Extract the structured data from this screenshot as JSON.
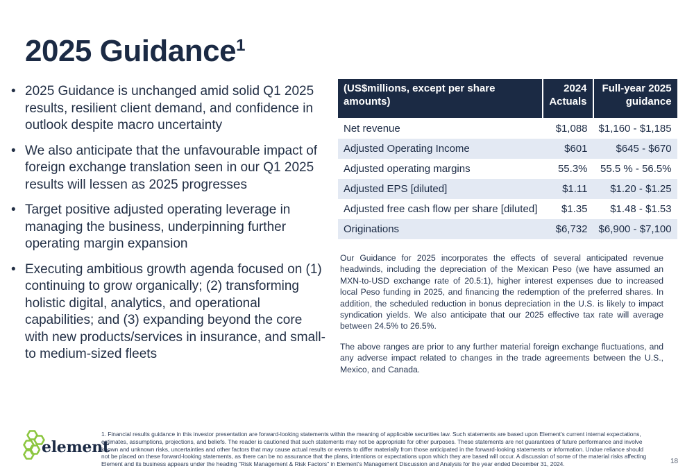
{
  "title": {
    "text": "2025 Guidance",
    "superscript": "1"
  },
  "bullets": [
    "2025 Guidance is unchanged amid solid Q1 2025 results, resilient client demand, and confidence in outlook despite macro uncertainty",
    "We also anticipate that the unfavourable impact of foreign exchange translation seen in our Q1 2025 results will lessen as 2025 progresses",
    "Target positive adjusted operating leverage in managing the business, underpinning further operating margin expansion",
    "Executing ambitious growth agenda focused on (1) continuing to grow organically; (2) transforming holistic digital, analytics, and operational capabilities; and (3) expanding beyond the core with new products/services in insurance, and small-to medium-sized fleets"
  ],
  "bullet_symbol": "•",
  "table": {
    "headers": {
      "metric": "(US$millions, except per share amounts)",
      "actuals_line1": "2024",
      "actuals_line2": "Actuals",
      "guidance_line1": "Full-year 2025",
      "guidance_line2": "guidance"
    },
    "rows": [
      {
        "metric": "Net revenue",
        "actuals": "$1,088",
        "guidance": "$1,160 - $1,185"
      },
      {
        "metric": "Adjusted Operating Income",
        "actuals": "$601",
        "guidance": "$645 - $670"
      },
      {
        "metric": "Adjusted operating margins",
        "actuals": "55.3%",
        "guidance": "55.5 % - 56.5%"
      },
      {
        "metric": "Adjusted EPS [diluted]",
        "actuals": "$1.11",
        "guidance": "$1.20 - $1.25"
      },
      {
        "metric": "Adjusted free cash flow per share [diluted]",
        "actuals": "$1.35",
        "guidance": "$1.48 - $1.53"
      },
      {
        "metric": "Originations",
        "actuals": "$6,732",
        "guidance": "$6,900 - $7,100"
      }
    ]
  },
  "notes": [
    "Our Guidance for 2025 incorporates the effects of several anticipated revenue headwinds, including the depreciation of the Mexican Peso (we have assumed an MXN-to-USD exchange rate of 20.5:1), higher interest expenses due to increased local Peso funding in 2025, and financing the redemption of the preferred shares. In addition, the scheduled reduction in bonus depreciation in the U.S. is likely to impact syndication yields. We also anticipate that our 2025 effective tax rate will average between 24.5% to 26.5%.",
    "The above ranges are prior to any further material foreign exchange fluctuations, and any adverse impact related to changes in the trade agreements between the U.S., Mexico, and Canada."
  ],
  "logo": {
    "text": "element",
    "icon": "hexagon-cluster-icon",
    "color": "#8cc63f"
  },
  "footnote": "1. Financial results guidance in this investor presentation are forward-looking statements within the meaning of applicable securities law. Such statements are based upon Element's current internal expectations, estimates, assumptions, projections, and beliefs. The reader is cautioned that such statements may not be appropriate for other purposes. These statements are not guarantees of future performance and involve known and unknown risks, uncertainties and other factors that may cause actual results or events to differ materially from those anticipated in the forward-looking statements or information. Undue reliance should not be placed on these forward-looking statements, as there can be no assurance that the plans, intentions or expectations upon which they are based will occur.  A discussion of some of the material risks affecting Element and its business appears under the heading \"Risk Management & Risk Factors\" in Element's Management Discussion and Analysis for the year ended December 31, 2024.",
  "page_number": "18",
  "colors": {
    "navy": "#1b2a44",
    "row_shade": "#e3e9f3",
    "logo_green": "#8cc63f"
  }
}
